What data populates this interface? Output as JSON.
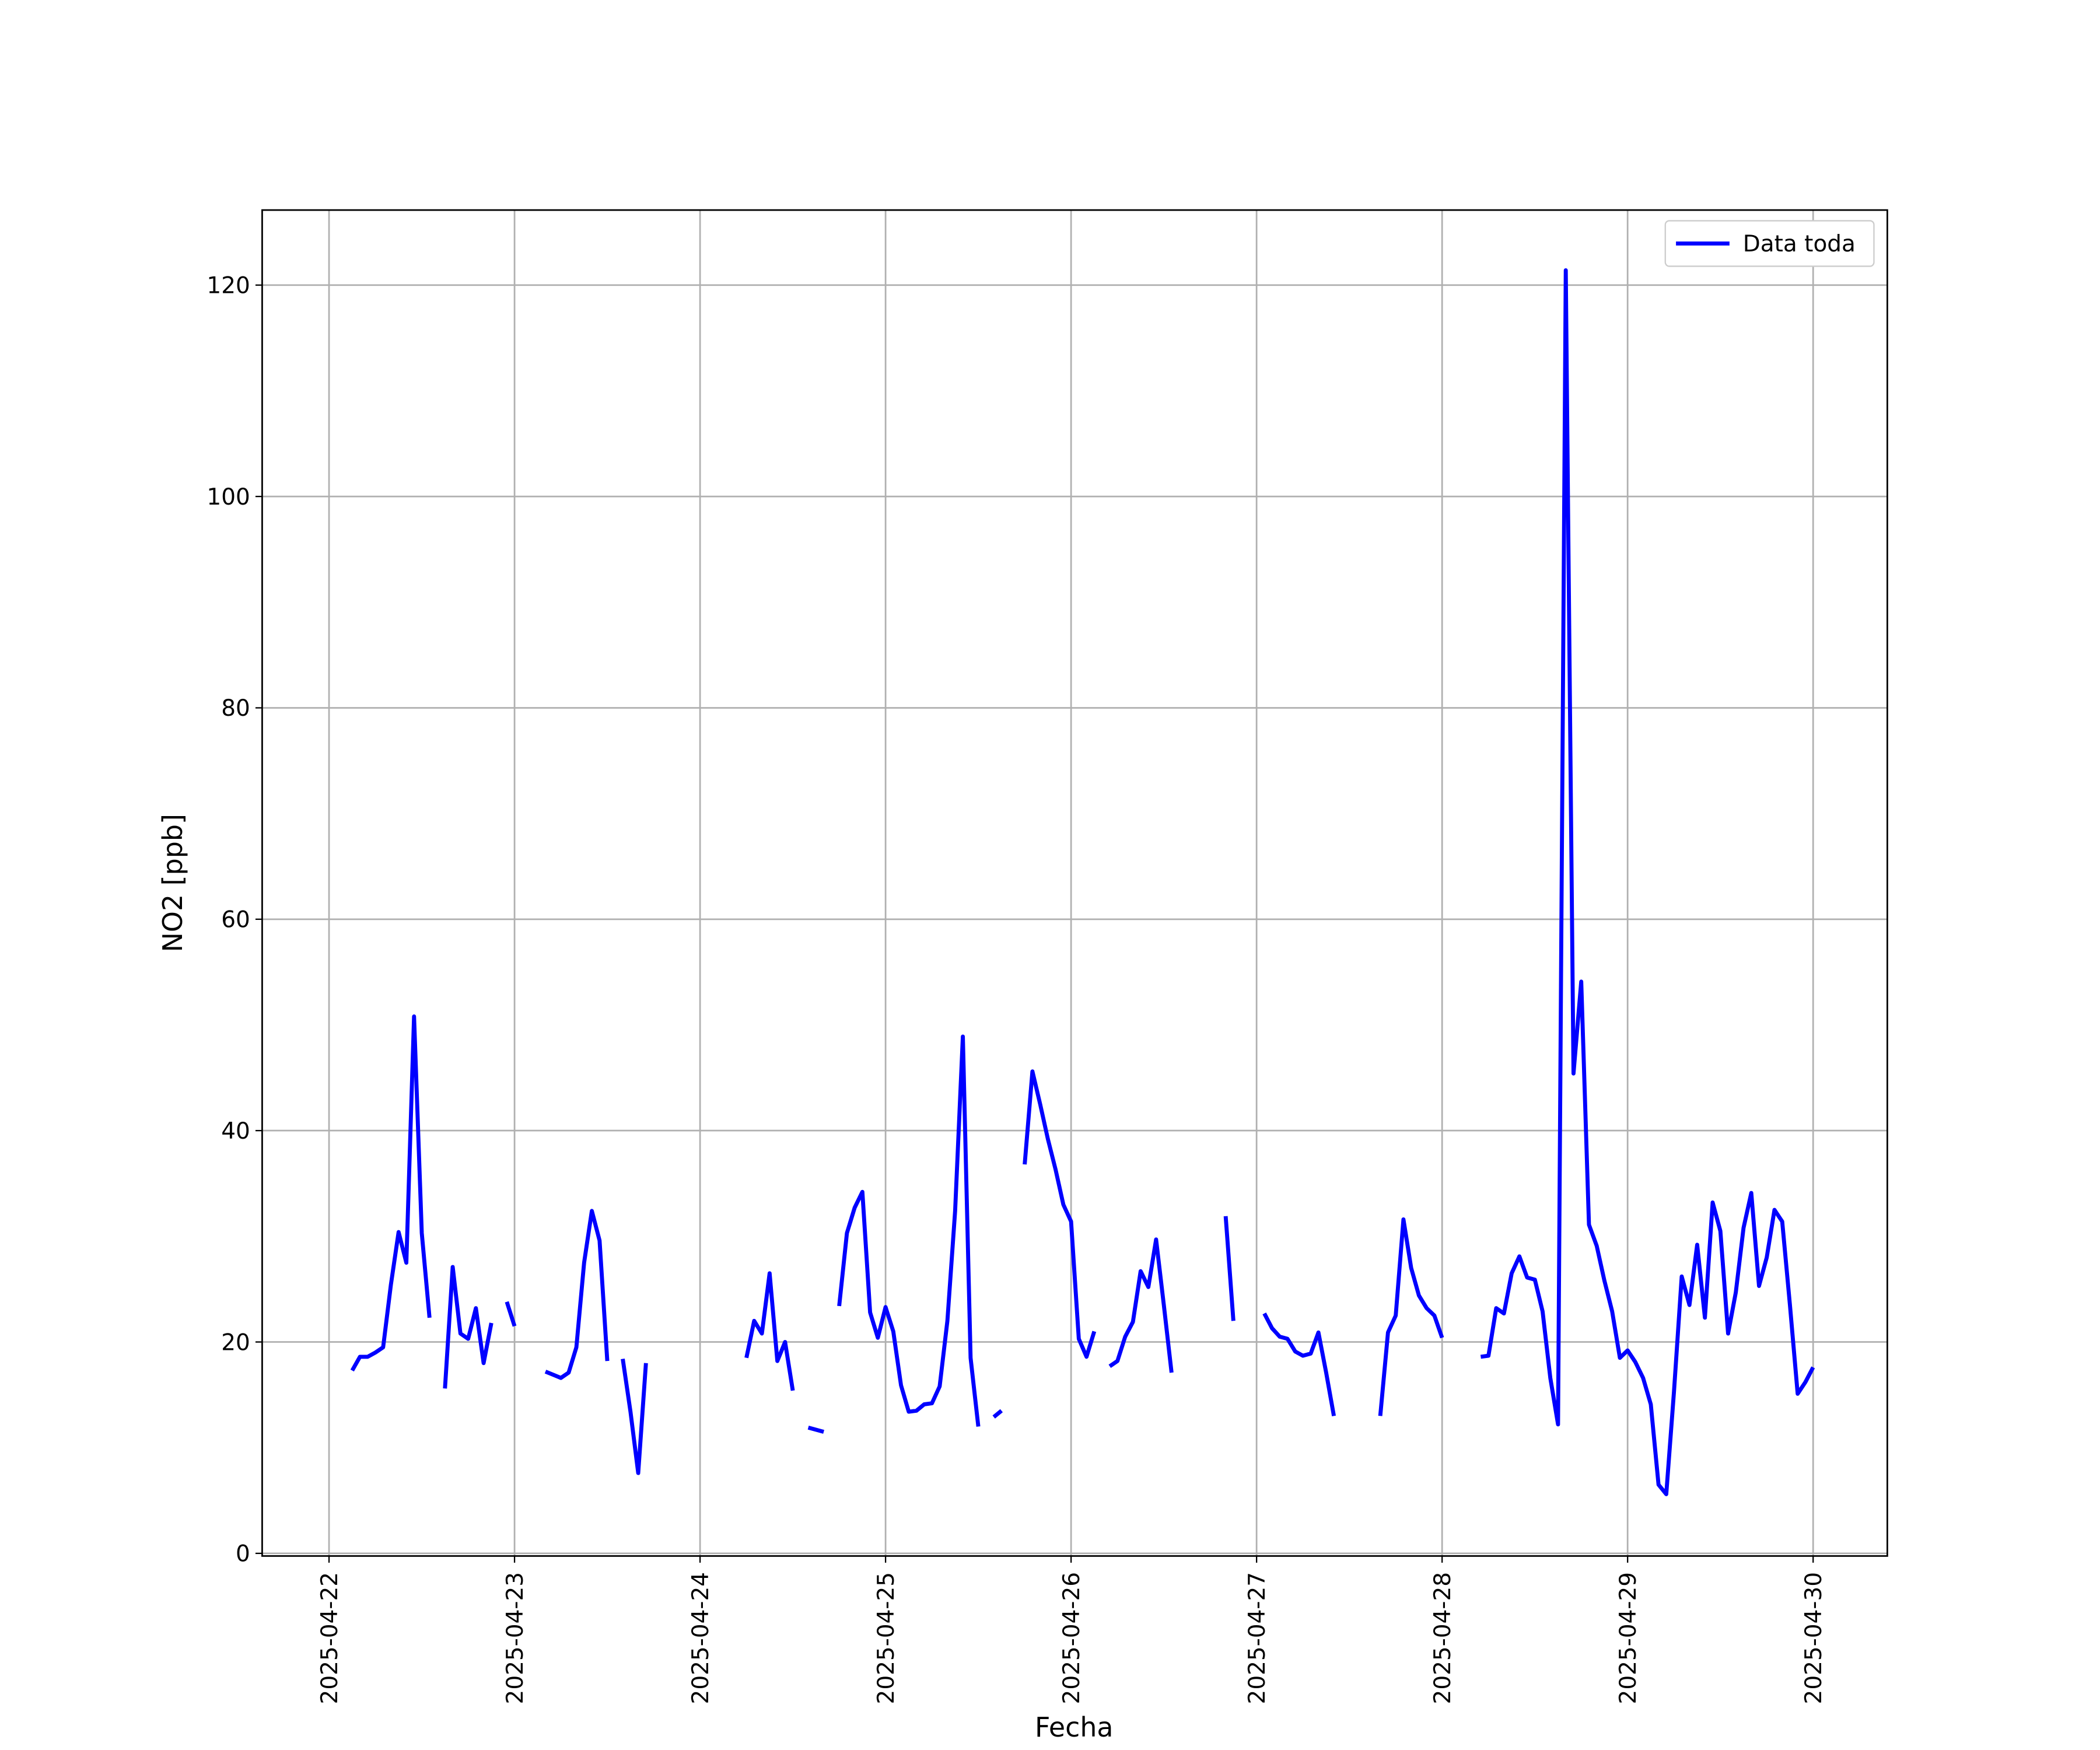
{
  "chart_data": {
    "type": "line",
    "xlabel": "Fecha",
    "ylabel": "NO2 [ppb]",
    "x": [
      3,
      4,
      5,
      6,
      7,
      8,
      9,
      10,
      11,
      12,
      13,
      14,
      15,
      16,
      17,
      18,
      19,
      20,
      21,
      22,
      23,
      24,
      25,
      26,
      27,
      28,
      29,
      30,
      31,
      32,
      33,
      34,
      35,
      36,
      37,
      38,
      39,
      40,
      41,
      42,
      43,
      44,
      45,
      46,
      47,
      48,
      49,
      50,
      51,
      52,
      53,
      54,
      55,
      56,
      57,
      58,
      59,
      60,
      61,
      62,
      63,
      64,
      65,
      66,
      67,
      68,
      69,
      70,
      71,
      72,
      73,
      74,
      75,
      76,
      77,
      78,
      79,
      80,
      81,
      82,
      83,
      84,
      85,
      86,
      87,
      88,
      89,
      90,
      91,
      92,
      93,
      94,
      95,
      96,
      97,
      98,
      99,
      100,
      101,
      102,
      103,
      104,
      105,
      106,
      107,
      108,
      109,
      110,
      111,
      112,
      113,
      114,
      115,
      116,
      117,
      118,
      119,
      120,
      121,
      122,
      123,
      124,
      125,
      126,
      127,
      128,
      129,
      130,
      131,
      132,
      133,
      134,
      135,
      136,
      137,
      138,
      139,
      140,
      141,
      142,
      143,
      144,
      145,
      146,
      147,
      148,
      149,
      150,
      151,
      152,
      153,
      154,
      155,
      156,
      157,
      158,
      159,
      160,
      161,
      162,
      163,
      164,
      165,
      166,
      167,
      168,
      169,
      170,
      171,
      172,
      173,
      174,
      175,
      176,
      177,
      178,
      179,
      180,
      181,
      182,
      183,
      184,
      185,
      186,
      187,
      188,
      189,
      190,
      191,
      192
    ],
    "series": [
      {
        "name": "Data toda",
        "color": "#0000ff",
        "values": [
          17.3,
          18.6,
          18.6,
          19.0,
          19.5,
          25.4,
          30.4,
          27.5,
          50.8,
          30.3,
          22.3,
          null,
          15.6,
          27.1,
          20.8,
          20.3,
          23.2,
          18.0,
          21.8,
          null,
          23.8,
          21.5,
          null,
          null,
          null,
          17.2,
          16.9,
          16.6,
          17.1,
          19.5,
          27.5,
          32.4,
          29.6,
          18.2,
          null,
          18.4,
          13.4,
          7.6,
          18.0,
          null,
          null,
          null,
          null,
          null,
          null,
          null,
          null,
          null,
          null,
          null,
          null,
          18.5,
          22.0,
          20.8,
          26.5,
          18.2,
          20.0,
          15.4,
          null,
          11.9,
          11.7,
          11.5,
          null,
          23.4,
          30.3,
          32.7,
          34.2,
          22.8,
          20.4,
          23.3,
          21.0,
          15.9,
          13.4,
          13.5,
          14.1,
          14.2,
          15.8,
          22.0,
          32.4,
          48.9,
          18.5,
          12.0,
          null,
          12.9,
          13.5,
          null,
          null,
          36.8,
          45.6,
          42.5,
          39.2,
          36.3,
          33.0,
          31.4,
          20.3,
          18.6,
          21.0,
          null,
          17.7,
          18.2,
          20.5,
          21.9,
          26.7,
          25.2,
          29.7,
          23.5,
          17.1,
          null,
          null,
          null,
          null,
          null,
          null,
          31.9,
          22.0,
          null,
          null,
          null,
          22.7,
          21.3,
          20.5,
          20.3,
          19.1,
          18.7,
          18.9,
          20.9,
          17.1,
          13.0,
          null,
          null,
          null,
          null,
          null,
          13.0,
          20.9,
          22.5,
          31.6,
          27.0,
          24.4,
          23.2,
          22.5,
          20.4,
          null,
          null,
          null,
          null,
          18.6,
          18.7,
          23.2,
          22.7,
          26.5,
          28.1,
          26.1,
          25.9,
          22.9,
          16.6,
          12.2,
          121.4,
          45.4,
          54.1,
          31.1,
          29.1,
          25.8,
          22.9,
          18.5,
          19.2,
          18.1,
          16.6,
          14.1,
          6.5,
          5.6,
          15.3,
          26.2,
          23.5,
          29.2,
          22.3,
          33.2,
          30.5,
          20.8,
          24.7,
          30.8,
          34.1,
          25.3,
          28.0,
          32.5,
          31.4,
          23.5,
          15.1,
          16.2,
          17.6
        ]
      }
    ],
    "xlim": [
      -8.65,
      201.6
    ],
    "xticks": [
      {
        "value": 0,
        "label": "2025-04-22"
      },
      {
        "value": 24,
        "label": "2025-04-23"
      },
      {
        "value": 48,
        "label": "2025-04-24"
      },
      {
        "value": 72,
        "label": "2025-04-25"
      },
      {
        "value": 96,
        "label": "2025-04-26"
      },
      {
        "value": 120,
        "label": "2025-04-27"
      },
      {
        "value": 144,
        "label": "2025-04-28"
      },
      {
        "value": 168,
        "label": "2025-04-29"
      },
      {
        "value": 192,
        "label": "2025-04-30"
      }
    ],
    "ylim": [
      -0.25,
      127.1
    ],
    "yticks": [
      0,
      20,
      40,
      60,
      80,
      100,
      120
    ],
    "grid": true,
    "legend": "upper right"
  }
}
